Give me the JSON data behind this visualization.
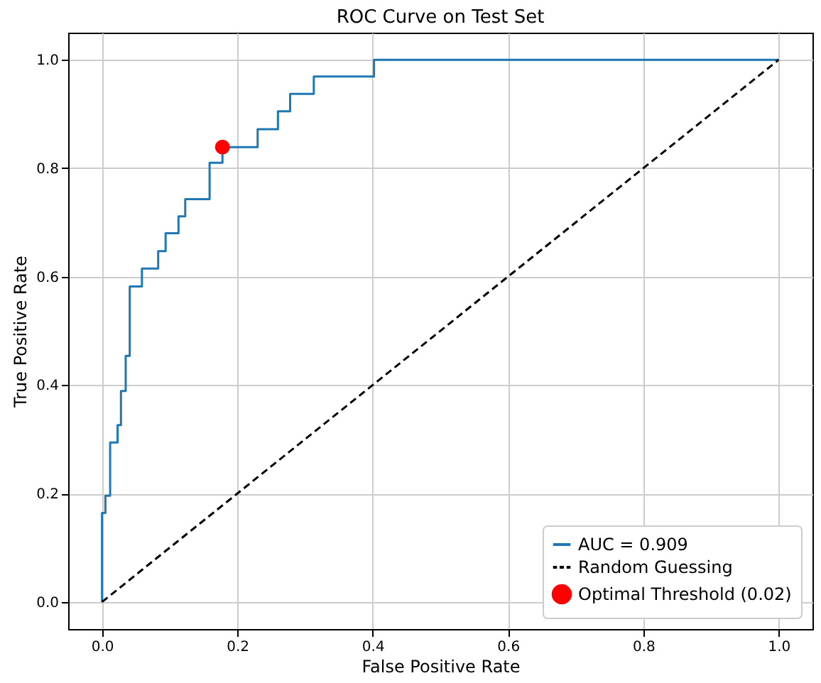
{
  "chart_data": {
    "type": "line",
    "title": "ROC Curve on Test Set",
    "xlabel": "False Positive Rate",
    "ylabel": "True Positive Rate",
    "xlim": [
      -0.05,
      1.05
    ],
    "ylim": [
      -0.05,
      1.05
    ],
    "xticks": [
      {
        "value": 0,
        "label": "0.0"
      },
      0.2,
      0.4,
      0.6,
      0.8,
      {
        "value": 1,
        "label": "1.0"
      }
    ],
    "yticks": [
      {
        "value": 0,
        "label": "0.0"
      },
      0.2,
      0.4,
      0.6,
      0.8,
      {
        "value": 1,
        "label": "1.0"
      }
    ],
    "grid": true,
    "legend": "bottom right",
    "series": [
      {
        "name": "AUC = 0.909",
        "color": "#1f77b4",
        "line_style": "solid",
        "x": [
          0,
          0,
          0.005,
          0.005,
          0.012,
          0.012,
          0.023,
          0.023,
          0.028,
          0.028,
          0.035,
          0.035,
          0.041,
          0.041,
          0.059,
          0.059,
          0.083,
          0.083,
          0.094,
          0.094,
          0.113,
          0.113,
          0.123,
          0.123,
          0.159,
          0.159,
          0.178,
          0.178,
          0.23,
          0.23,
          0.26,
          0.26,
          0.278,
          0.278,
          0.313,
          0.313,
          0.402,
          0.402,
          1
        ],
        "values": [
          0,
          0.164,
          0.164,
          0.196,
          0.196,
          0.294,
          0.294,
          0.326,
          0.326,
          0.389,
          0.389,
          0.454,
          0.454,
          0.582,
          0.582,
          0.615,
          0.615,
          0.647,
          0.647,
          0.68,
          0.68,
          0.711,
          0.711,
          0.743,
          0.743,
          0.81,
          0.81,
          0.839,
          0.839,
          0.872,
          0.872,
          0.905,
          0.905,
          0.937,
          0.937,
          0.969,
          0.969,
          1,
          1
        ]
      },
      {
        "name": "Random Guessing",
        "color": "#000000",
        "line_style": "dashed",
        "x": [
          0,
          1
        ],
        "values": [
          0,
          1
        ]
      },
      {
        "name": "Optimal Threshold (0.02)",
        "type": "scatter",
        "color": "#ff0000",
        "marker": "circle",
        "x": [
          0.178
        ],
        "values": [
          0.839
        ]
      }
    ]
  }
}
